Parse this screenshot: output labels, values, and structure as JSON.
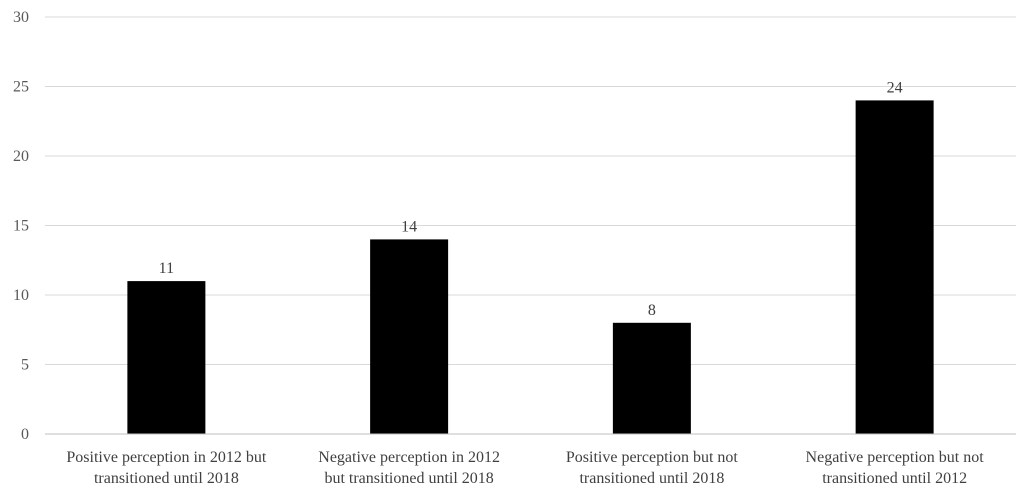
{
  "chart_data": {
    "type": "bar",
    "categories": [
      [
        "Positive perception in 2012 but",
        "transitioned until 2018"
      ],
      [
        "Negative perception in 2012",
        "but transitioned until 2018"
      ],
      [
        "Positive perception but not",
        "transitioned until 2018"
      ],
      [
        "Negative perception but not",
        "transitioned until 2012"
      ]
    ],
    "values": [
      11,
      14,
      8,
      24
    ],
    "data_labels": [
      "11",
      "14",
      "8",
      "24"
    ],
    "ylim": [
      0,
      30
    ],
    "yticks": [
      0,
      5,
      10,
      15,
      20,
      25,
      30
    ],
    "grid": true,
    "legend": "none",
    "title": "",
    "xlabel": "",
    "ylabel": "",
    "colors": {
      "bar": "#000000",
      "grid": "#d9d9d9",
      "axis": "#bfbfbf"
    }
  }
}
